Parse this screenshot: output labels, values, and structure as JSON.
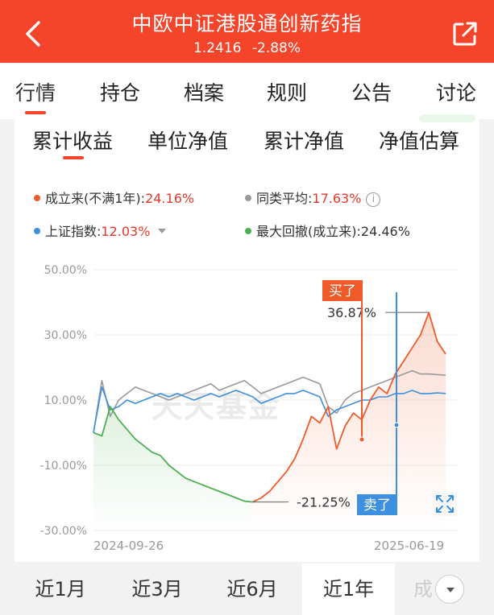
{
  "header": {
    "title": "中欧中证港股通创新药指",
    "nav": "1.2416",
    "change": "-2.88%",
    "back_icon": "back-chevron-icon",
    "share_icon": "share-external-icon"
  },
  "tabs": [
    "行情",
    "持仓",
    "档案",
    "规则",
    "公告",
    "讨论"
  ],
  "subtabs": [
    "累计收益",
    "单位净值",
    "累计净值",
    "净值估算"
  ],
  "legend": {
    "fund": {
      "label": "成立来(不满1年):",
      "value": "24.16%",
      "color": "#f05a28"
    },
    "peer": {
      "label": "同类平均:",
      "value": "17.63%",
      "color": "#999999"
    },
    "index": {
      "label": "上证指数:",
      "value": "12.03%",
      "color": "#3d8fe0"
    },
    "drawdown": {
      "label": "最大回撤(成立来):",
      "value": "24.46%",
      "color": "#4caf50"
    }
  },
  "chart_data": {
    "type": "line",
    "ylim": [
      -30,
      50
    ],
    "yticks": [
      "50.00%",
      "30.00%",
      "10.00%",
      "-10.00%",
      "-30.00%"
    ],
    "x_start_label": "2024-09-26",
    "x_end_label": "2025-06-19",
    "annotations": {
      "peak": "36.87%",
      "trough": "-21.25%"
    },
    "markers": {
      "buy": "买了",
      "sell": "卖了"
    },
    "watermark": "天天基金",
    "series": [
      {
        "name": "成立来",
        "color": "#f05a28",
        "values": [
          0,
          -1,
          8,
          4,
          1,
          -2,
          -4,
          -6,
          -7,
          -10,
          -12,
          -14,
          -15,
          -16,
          -17,
          -18,
          -19,
          -20,
          -21,
          -21.25,
          -20,
          -18,
          -15,
          -12,
          -8,
          -2,
          5,
          3,
          8,
          -5,
          2,
          6,
          4,
          10,
          14,
          12,
          18,
          22,
          26,
          30,
          36.87,
          28,
          24.16
        ]
      },
      {
        "name": "同类平均",
        "color": "#999999",
        "values": [
          0,
          16,
          5,
          10,
          12,
          14,
          13,
          12,
          11,
          10,
          11,
          12,
          13,
          14,
          15,
          13,
          14,
          15,
          16,
          14,
          12,
          13,
          14,
          15,
          16,
          17,
          16,
          15,
          8,
          6,
          10,
          12,
          13,
          14,
          15,
          16,
          17,
          18,
          19,
          18,
          18,
          17.8,
          17.63
        ]
      },
      {
        "name": "上证指数",
        "color": "#3d8fe0",
        "values": [
          0,
          14,
          7,
          8,
          10,
          9,
          10,
          11,
          12,
          11,
          12,
          11,
          10,
          11,
          12,
          11,
          12,
          13,
          12,
          11,
          9,
          10,
          11,
          12,
          12,
          13,
          12,
          11,
          5,
          7,
          8,
          9,
          10,
          10,
          11,
          11,
          12,
          12,
          13,
          12,
          12,
          12.2,
          12.03
        ]
      }
    ]
  },
  "periods": [
    "近1月",
    "近3月",
    "近6月",
    "近1年",
    "成"
  ]
}
